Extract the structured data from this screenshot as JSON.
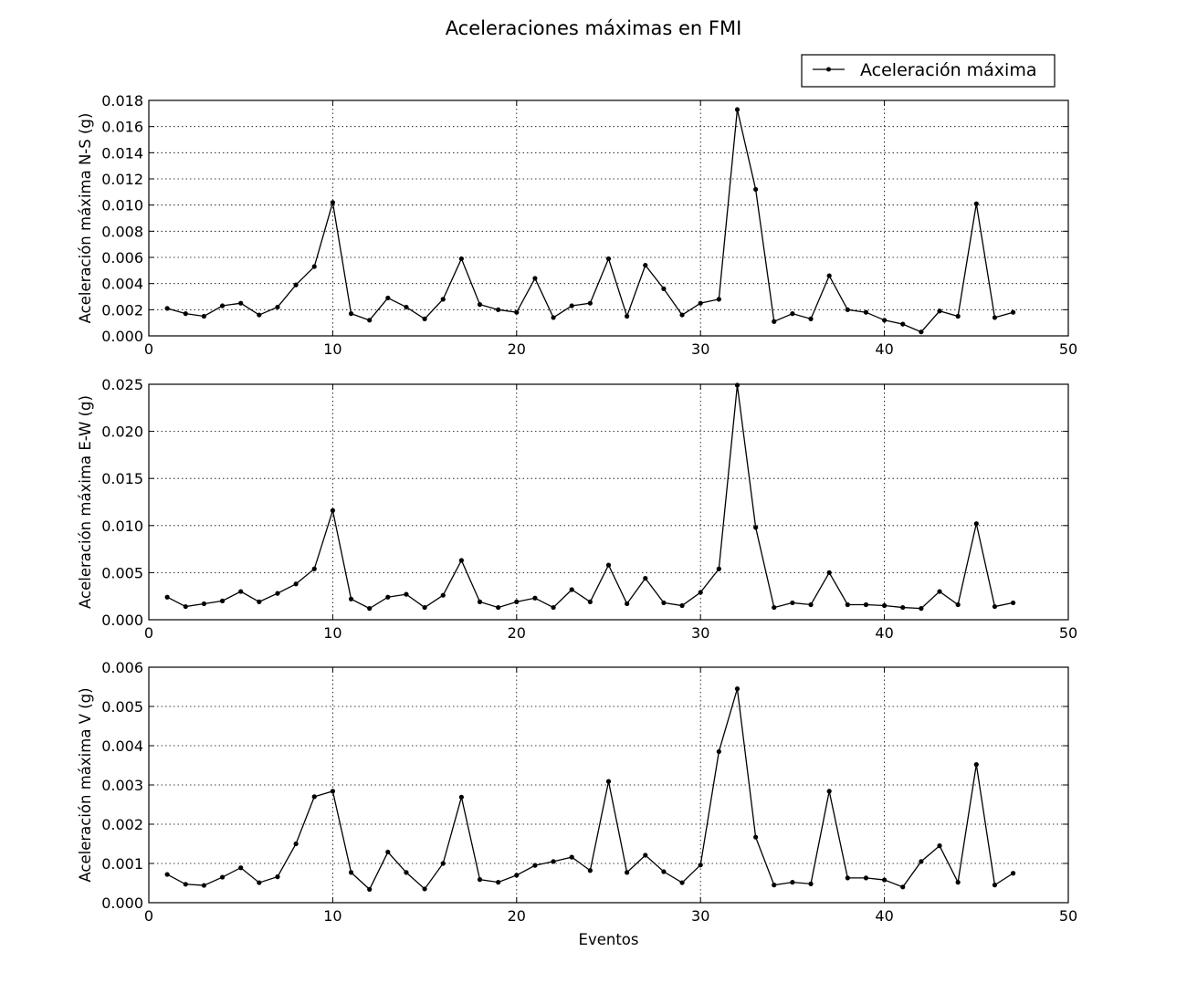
{
  "title": "Aceleraciones máximas en FMI",
  "legend": {
    "label": "Aceleración máxima",
    "placement": "top-right"
  },
  "colors": {
    "line": "#000000",
    "background": "#ffffff"
  },
  "chart_data": [
    {
      "type": "line",
      "ylabel": "Aceleración máxima N-S (g)",
      "xlabel": "",
      "xlim": [
        0,
        50
      ],
      "ylim": [
        0,
        0.018
      ],
      "xticks": [
        0,
        10,
        20,
        30,
        40,
        50
      ],
      "yticks": [
        0.0,
        0.002,
        0.004,
        0.006,
        0.008,
        0.01,
        0.012,
        0.014,
        0.016,
        0.018
      ],
      "ytick_labels": [
        "0.000",
        "0.002",
        "0.004",
        "0.006",
        "0.008",
        "0.010",
        "0.012",
        "0.014",
        "0.016",
        "0.018"
      ],
      "grid": true,
      "series": [
        {
          "name": "Aceleración máxima",
          "x": [
            1,
            2,
            3,
            4,
            5,
            6,
            7,
            8,
            9,
            10,
            11,
            12,
            13,
            14,
            15,
            16,
            17,
            18,
            19,
            20,
            21,
            22,
            23,
            24,
            25,
            26,
            27,
            28,
            29,
            30,
            31,
            32,
            33,
            34,
            35,
            36,
            37,
            38,
            39,
            40,
            41,
            42,
            43,
            44,
            45,
            46,
            47
          ],
          "y": [
            0.0021,
            0.0017,
            0.0015,
            0.0023,
            0.0025,
            0.0016,
            0.0022,
            0.0039,
            0.0053,
            0.0102,
            0.0017,
            0.0012,
            0.0029,
            0.0022,
            0.0013,
            0.0028,
            0.0059,
            0.0024,
            0.002,
            0.0018,
            0.0044,
            0.0014,
            0.0023,
            0.0025,
            0.0059,
            0.0015,
            0.0054,
            0.0036,
            0.0016,
            0.0025,
            0.0028,
            0.0173,
            0.0112,
            0.0011,
            0.0017,
            0.0013,
            0.0046,
            0.002,
            0.0018,
            0.0012,
            0.0009,
            0.0003,
            0.0019,
            0.0015,
            0.0101,
            0.0014,
            0.0018
          ]
        }
      ]
    },
    {
      "type": "line",
      "ylabel": "Aceleración máxima E-W (g)",
      "xlabel": "",
      "xlim": [
        0,
        50
      ],
      "ylim": [
        0,
        0.025
      ],
      "xticks": [
        0,
        10,
        20,
        30,
        40,
        50
      ],
      "yticks": [
        0.0,
        0.005,
        0.01,
        0.015,
        0.02,
        0.025
      ],
      "ytick_labels": [
        "0.000",
        "0.005",
        "0.010",
        "0.015",
        "0.020",
        "0.025"
      ],
      "grid": true,
      "series": [
        {
          "name": "Aceleración máxima",
          "x": [
            1,
            2,
            3,
            4,
            5,
            6,
            7,
            8,
            9,
            10,
            11,
            12,
            13,
            14,
            15,
            16,
            17,
            18,
            19,
            20,
            21,
            22,
            23,
            24,
            25,
            26,
            27,
            28,
            29,
            30,
            31,
            32,
            33,
            34,
            35,
            36,
            37,
            38,
            39,
            40,
            41,
            42,
            43,
            44,
            45,
            46,
            47
          ],
          "y": [
            0.0024,
            0.0014,
            0.0017,
            0.002,
            0.003,
            0.0019,
            0.0028,
            0.0038,
            0.0054,
            0.0116,
            0.0022,
            0.0012,
            0.0024,
            0.0027,
            0.0013,
            0.0026,
            0.0063,
            0.0019,
            0.0013,
            0.0019,
            0.0023,
            0.0013,
            0.0032,
            0.0019,
            0.0058,
            0.0017,
            0.0044,
            0.0018,
            0.0015,
            0.0029,
            0.0054,
            0.0249,
            0.0098,
            0.0013,
            0.0018,
            0.0016,
            0.005,
            0.0016,
            0.0016,
            0.0015,
            0.0013,
            0.0012,
            0.003,
            0.0016,
            0.0102,
            0.0014,
            0.0018
          ]
        }
      ]
    },
    {
      "type": "line",
      "ylabel": "Aceleración máxima V (g)",
      "xlabel": "Eventos",
      "xlim": [
        0,
        50
      ],
      "ylim": [
        0,
        0.006
      ],
      "xticks": [
        0,
        10,
        20,
        30,
        40,
        50
      ],
      "yticks": [
        0.0,
        0.001,
        0.002,
        0.003,
        0.004,
        0.005,
        0.006
      ],
      "ytick_labels": [
        "0.000",
        "0.001",
        "0.002",
        "0.003",
        "0.004",
        "0.005",
        "0.006"
      ],
      "grid": true,
      "series": [
        {
          "name": "Aceleración máxima",
          "x": [
            1,
            2,
            3,
            4,
            5,
            6,
            7,
            8,
            9,
            10,
            11,
            12,
            13,
            14,
            15,
            16,
            17,
            18,
            19,
            20,
            21,
            22,
            23,
            24,
            25,
            26,
            27,
            28,
            29,
            30,
            31,
            32,
            33,
            34,
            35,
            36,
            37,
            38,
            39,
            40,
            41,
            42,
            43,
            44,
            45,
            46,
            47
          ],
          "y": [
            0.00072,
            0.00047,
            0.00044,
            0.00065,
            0.00089,
            0.00051,
            0.00066,
            0.0015,
            0.0027,
            0.00284,
            0.00077,
            0.00034,
            0.00129,
            0.00077,
            0.00035,
            0.001,
            0.00269,
            0.00059,
            0.00052,
            0.0007,
            0.00095,
            0.00105,
            0.00116,
            0.00082,
            0.00309,
            0.00077,
            0.00121,
            0.00079,
            0.00051,
            0.00096,
            0.00385,
            0.00545,
            0.00167,
            0.00045,
            0.00052,
            0.00048,
            0.00284,
            0.00063,
            0.00063,
            0.00058,
            0.0004,
            0.00105,
            0.00145,
            0.00052,
            0.00352,
            0.00045,
            0.00075
          ]
        }
      ]
    }
  ]
}
